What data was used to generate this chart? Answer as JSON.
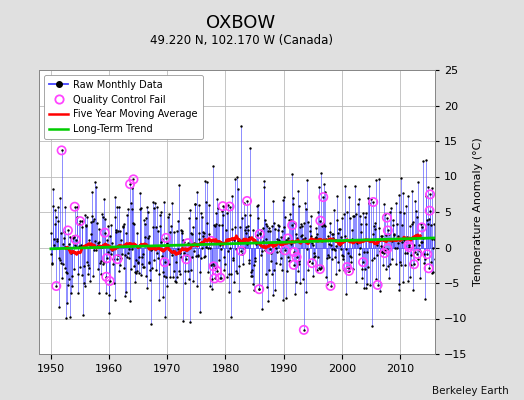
{
  "title": "OXBOW",
  "subtitle": "49.220 N, 102.170 W (Canada)",
  "ylabel": "Temperature Anomaly (°C)",
  "watermark": "Berkeley Earth",
  "xlim": [
    1948,
    2016
  ],
  "ylim": [
    -15,
    25
  ],
  "yticks": [
    -15,
    -10,
    -5,
    0,
    5,
    10,
    15,
    20,
    25
  ],
  "xticks": [
    1950,
    1960,
    1970,
    1980,
    1990,
    2000,
    2010
  ],
  "bg_color": "#e0e0e0",
  "plot_bg_color": "#ffffff",
  "grid_color": "#bbbbbb",
  "raw_line_color": "#4444ff",
  "raw_dot_color": "#000000",
  "qc_fail_color": "#ff44ff",
  "moving_avg_color": "#ff0000",
  "trend_color": "#00cc00",
  "seed": 12345,
  "n_months": 792,
  "start_year": 1950,
  "trend_slope": 0.018,
  "noise_std": 4.2,
  "qc_rate": 0.08
}
